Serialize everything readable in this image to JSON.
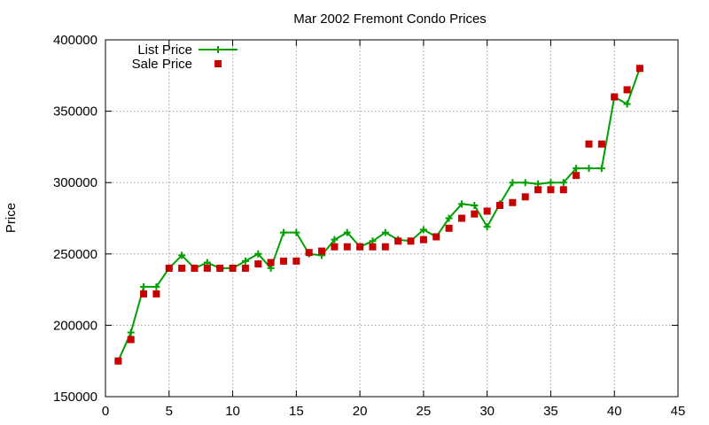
{
  "chart_data": {
    "type": "line",
    "title": "Mar 2002 Fremont Condo Prices",
    "xlabel": "",
    "ylabel": "Price",
    "xlim": [
      0,
      45
    ],
    "ylim": [
      150000,
      400000
    ],
    "xticks": [
      0,
      5,
      10,
      15,
      20,
      25,
      30,
      35,
      40,
      45
    ],
    "yticks": [
      150000,
      200000,
      250000,
      300000,
      350000,
      400000
    ],
    "grid": true,
    "legend_position": "top-left",
    "series": [
      {
        "name": "List Price",
        "style": "line-with-plus-markers",
        "color": "#00a000",
        "x": [
          1,
          2,
          3,
          4,
          5,
          6,
          7,
          8,
          9,
          10,
          11,
          12,
          13,
          14,
          15,
          16,
          17,
          18,
          19,
          20,
          21,
          22,
          23,
          24,
          25,
          26,
          27,
          28,
          29,
          30,
          31,
          32,
          33,
          34,
          35,
          36,
          37,
          38,
          39,
          40,
          41,
          42
        ],
        "y": [
          175000,
          195000,
          227000,
          227000,
          240000,
          249000,
          240000,
          244000,
          240000,
          240000,
          245000,
          250000,
          240000,
          265000,
          265000,
          250000,
          249000,
          260000,
          265000,
          255000,
          259000,
          265000,
          260000,
          259000,
          267000,
          262000,
          275000,
          285000,
          284000,
          269000,
          285000,
          300000,
          300000,
          299000,
          300000,
          300000,
          310000,
          310000,
          310000,
          360000,
          355000,
          380000
        ]
      },
      {
        "name": "Sale Price",
        "style": "square-markers",
        "color": "#c80000",
        "x": [
          1,
          2,
          3,
          4,
          5,
          6,
          7,
          8,
          9,
          10,
          11,
          12,
          13,
          14,
          15,
          16,
          17,
          18,
          19,
          20,
          21,
          22,
          23,
          24,
          25,
          26,
          27,
          28,
          29,
          30,
          31,
          32,
          33,
          34,
          35,
          36,
          37,
          38,
          39,
          40,
          41,
          42
        ],
        "y": [
          175000,
          190000,
          222000,
          222000,
          240000,
          240000,
          240000,
          240000,
          240000,
          240000,
          240000,
          243000,
          244000,
          245000,
          245000,
          251000,
          252000,
          255000,
          255000,
          255000,
          255000,
          255000,
          259000,
          259000,
          260000,
          262000,
          268000,
          275000,
          278000,
          280000,
          284000,
          286000,
          290000,
          295000,
          295000,
          295000,
          305000,
          327000,
          327000,
          360000,
          365000,
          380000
        ]
      }
    ]
  }
}
